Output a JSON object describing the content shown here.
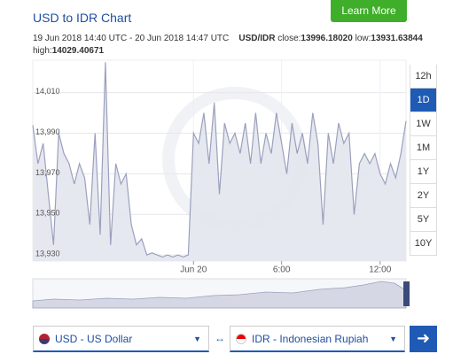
{
  "header": {
    "title": "USD to IDR Chart",
    "button": "Learn More"
  },
  "info": {
    "period": "19 Jun 2018 14:40 UTC - 20 Jun 2018 14:47 UTC",
    "pair": "USD/IDR",
    "close_label": "close:",
    "close": "13996.18020",
    "low_label": "low:",
    "low": "13931.63844",
    "high_label": "high:",
    "high": "14029.40671"
  },
  "ranges": {
    "options": [
      "12h",
      "1D",
      "1W",
      "1M",
      "1Y",
      "2Y",
      "5Y",
      "10Y"
    ],
    "selected": "1D"
  },
  "converter": {
    "from": "USD - US Dollar",
    "to": "IDR - Indonesian Rupiah"
  },
  "chart_data": {
    "type": "area",
    "categories": [
      null,
      null,
      null,
      null,
      null,
      null,
      null,
      null,
      null,
      null,
      null,
      null,
      null,
      null,
      null,
      null,
      null,
      null,
      null,
      null,
      null,
      null,
      null,
      null,
      null,
      null,
      null,
      null,
      null,
      null,
      null,
      "Jun 20",
      null,
      null,
      null,
      null,
      null,
      null,
      null,
      null,
      null,
      null,
      null,
      null,
      null,
      null,
      null,
      null,
      "6:00",
      null,
      null,
      null,
      null,
      null,
      null,
      null,
      null,
      null,
      null,
      null,
      null,
      null,
      null,
      null,
      null,
      null,
      null,
      "12:00",
      null,
      null,
      null,
      null,
      null
    ],
    "values": [
      13994,
      13975,
      13985,
      13960,
      13935,
      13990,
      13980,
      13975,
      13965,
      13975,
      13968,
      13945,
      13990,
      13940,
      14025,
      13935,
      13975,
      13965,
      13970,
      13945,
      13935,
      13938,
      13930,
      13931,
      13930,
      13929,
      13930,
      13929,
      13930,
      13929,
      13930,
      13990,
      13985,
      14000,
      13975,
      14005,
      13960,
      13995,
      13985,
      13990,
      13980,
      13995,
      13975,
      14000,
      13975,
      13990,
      13980,
      14000,
      13985,
      13970,
      13995,
      13980,
      13990,
      13975,
      14000,
      13985,
      13945,
      13990,
      13975,
      13995,
      13985,
      13990,
      13950,
      13975,
      13980,
      13975,
      13980,
      13970,
      13965,
      13975,
      13968,
      13980,
      13996
    ],
    "color": "#9aa0bd",
    "fill": "#e3e5ee",
    "ylim": [
      13927,
      14026
    ],
    "yticks": [
      {
        "value": 13930,
        "label": "13,930"
      },
      {
        "value": 13950,
        "label": "13,950"
      },
      {
        "value": 13970,
        "label": "13,970"
      },
      {
        "value": 13990,
        "label": "13,990"
      },
      {
        "value": 14010,
        "label": "14,010"
      }
    ],
    "grid": true
  }
}
